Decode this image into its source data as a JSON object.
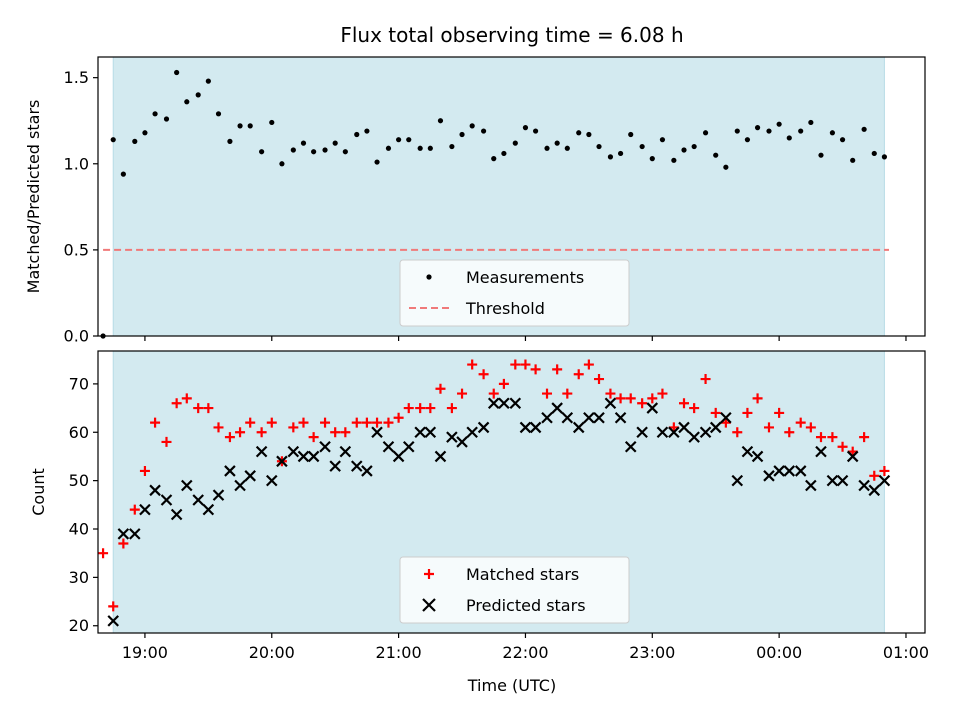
{
  "chart_data": {
    "title": "Flux total observing time = 6.08 h",
    "xlabel": "Time (UTC)",
    "x_unit": "hours since 18:00 UTC",
    "xlim": [
      18.63,
      25.15
    ],
    "x_ticks": [
      {
        "value": 19,
        "label": "19:00"
      },
      {
        "value": 20,
        "label": "20:00"
      },
      {
        "value": 21,
        "label": "21:00"
      },
      {
        "value": 22,
        "label": "22:00"
      },
      {
        "value": 23,
        "label": "23:00"
      },
      {
        "value": 24,
        "label": "00:00"
      },
      {
        "value": 25,
        "label": "01:00"
      }
    ],
    "observing_window": [
      18.75,
      24.83
    ],
    "colors": {
      "span": "#d3eaf0",
      "span_edge": "#b8dce6",
      "measurement": "#000000",
      "threshold": "#f07a7a",
      "matched": "#ff0000",
      "predicted": "#000000"
    },
    "panels": [
      {
        "type": "scatter",
        "ylabel": "Matched/Predicted stars",
        "ylim": [
          0,
          1.62
        ],
        "y_ticks": [
          0.0,
          0.5,
          1.0,
          1.5
        ],
        "y_tick_labels": [
          "0.0",
          "0.5",
          "1.0",
          "1.5"
        ],
        "threshold": 0.5,
        "legend": [
          "Measurements",
          "Threshold"
        ],
        "legend_loc": "lower center",
        "series": [
          {
            "name": "Measurements",
            "x": [
              18.67,
              18.75,
              18.83,
              18.92,
              19.0,
              19.08,
              19.17,
              19.25,
              19.33,
              19.42,
              19.5,
              19.58,
              19.67,
              19.75,
              19.83,
              19.92,
              20.0,
              20.08,
              20.17,
              20.25,
              20.33,
              20.42,
              20.5,
              20.58,
              20.67,
              20.75,
              20.83,
              20.92,
              21.0,
              21.08,
              21.17,
              21.25,
              21.33,
              21.42,
              21.5,
              21.58,
              21.67,
              21.75,
              21.83,
              21.92,
              22.0,
              22.08,
              22.17,
              22.25,
              22.33,
              22.42,
              22.5,
              22.58,
              22.67,
              22.75,
              22.83,
              22.92,
              23.0,
              23.08,
              23.17,
              23.25,
              23.33,
              23.42,
              23.5,
              23.58,
              23.67,
              23.75,
              23.83,
              23.92,
              24.0,
              24.08,
              24.17,
              24.25,
              24.33,
              24.42,
              24.5,
              24.58,
              24.67,
              24.75,
              24.83
            ],
            "y": [
              0.0,
              1.14,
              0.94,
              1.13,
              1.18,
              1.29,
              1.26,
              1.53,
              1.36,
              1.4,
              1.48,
              1.29,
              1.13,
              1.22,
              1.22,
              1.07,
              1.24,
              1.0,
              1.08,
              1.12,
              1.07,
              1.08,
              1.12,
              1.07,
              1.17,
              1.19,
              1.01,
              1.09,
              1.14,
              1.14,
              1.09,
              1.09,
              1.25,
              1.1,
              1.17,
              1.22,
              1.19,
              1.03,
              1.06,
              1.12,
              1.21,
              1.19,
              1.09,
              1.12,
              1.09,
              1.18,
              1.17,
              1.1,
              1.04,
              1.06,
              1.17,
              1.1,
              1.03,
              1.14,
              1.02,
              1.08,
              1.1,
              1.18,
              1.05,
              0.98,
              1.19,
              1.14,
              1.21,
              1.19,
              1.23,
              1.15,
              1.19,
              1.24,
              1.05,
              1.18,
              1.14,
              1.02,
              1.2,
              1.06,
              1.04
            ]
          }
        ]
      },
      {
        "type": "scatter",
        "ylabel": "Count",
        "ylim": [
          18.5,
          76.8
        ],
        "y_ticks": [
          20,
          30,
          40,
          50,
          60,
          70
        ],
        "y_tick_labels": [
          "20",
          "30",
          "40",
          "50",
          "60",
          "70"
        ],
        "legend": [
          "Matched stars",
          "Predicted stars"
        ],
        "legend_loc": "lower center",
        "series": [
          {
            "name": "Matched stars",
            "marker": "+",
            "x": [
              18.67,
              18.75,
              18.83,
              18.92,
              19.0,
              19.08,
              19.17,
              19.25,
              19.33,
              19.42,
              19.5,
              19.58,
              19.67,
              19.75,
              19.83,
              19.92,
              20.0,
              20.08,
              20.17,
              20.25,
              20.33,
              20.42,
              20.5,
              20.58,
              20.67,
              20.75,
              20.83,
              20.92,
              21.0,
              21.08,
              21.17,
              21.25,
              21.33,
              21.42,
              21.5,
              21.58,
              21.67,
              21.75,
              21.83,
              21.92,
              22.0,
              22.08,
              22.17,
              22.25,
              22.33,
              22.42,
              22.5,
              22.58,
              22.67,
              22.75,
              22.83,
              22.92,
              23.0,
              23.08,
              23.17,
              23.25,
              23.33,
              23.42,
              23.5,
              23.58,
              23.67,
              23.75,
              23.83,
              23.92,
              24.0,
              24.08,
              24.17,
              24.25,
              24.33,
              24.42,
              24.5,
              24.58,
              24.67,
              24.75,
              24.83
            ],
            "y": [
              35,
              24,
              37,
              44,
              52,
              62,
              58,
              66,
              67,
              65,
              65,
              61,
              59,
              60,
              62,
              60,
              62,
              54,
              61,
              62,
              59,
              62,
              60,
              60,
              62,
              62,
              62,
              62,
              63,
              65,
              65,
              65,
              69,
              65,
              68,
              74,
              72,
              68,
              70,
              74,
              74,
              73,
              68,
              73,
              68,
              72,
              74,
              71,
              68,
              67,
              67,
              66,
              67,
              68,
              61,
              66,
              65,
              71,
              64,
              62,
              60,
              64,
              67,
              61,
              64,
              60,
              62,
              61,
              59,
              59,
              57,
              56,
              59,
              51,
              52
            ]
          },
          {
            "name": "Predicted stars",
            "marker": "x",
            "x": [
              18.75,
              18.83,
              18.92,
              19.0,
              19.08,
              19.17,
              19.25,
              19.33,
              19.42,
              19.5,
              19.58,
              19.67,
              19.75,
              19.83,
              19.92,
              20.0,
              20.08,
              20.17,
              20.25,
              20.33,
              20.42,
              20.5,
              20.58,
              20.67,
              20.75,
              20.83,
              20.92,
              21.0,
              21.08,
              21.17,
              21.25,
              21.33,
              21.42,
              21.5,
              21.58,
              21.67,
              21.75,
              21.83,
              21.92,
              22.0,
              22.08,
              22.17,
              22.25,
              22.33,
              22.42,
              22.5,
              22.58,
              22.67,
              22.75,
              22.83,
              22.92,
              23.0,
              23.08,
              23.17,
              23.25,
              23.33,
              23.42,
              23.5,
              23.58,
              23.67,
              23.75,
              23.83,
              23.92,
              24.0,
              24.08,
              24.17,
              24.25,
              24.33,
              24.42,
              24.5,
              24.58,
              24.67,
              24.75,
              24.83
            ],
            "y": [
              21,
              39,
              39,
              44,
              48,
              46,
              43,
              49,
              46,
              44,
              47,
              52,
              49,
              51,
              56,
              50,
              54,
              56,
              55,
              55,
              57,
              53,
              56,
              53,
              52,
              60,
              57,
              55,
              57,
              60,
              60,
              55,
              59,
              58,
              60,
              61,
              66,
              66,
              66,
              61,
              61,
              63,
              65,
              63,
              61,
              63,
              63,
              66,
              63,
              57,
              60,
              65,
              60,
              60,
              61,
              59,
              60,
              61,
              63,
              50,
              56,
              55,
              51,
              52,
              52,
              52,
              49,
              56,
              50,
              50,
              55,
              49,
              48,
              50
            ]
          }
        ]
      }
    ]
  }
}
